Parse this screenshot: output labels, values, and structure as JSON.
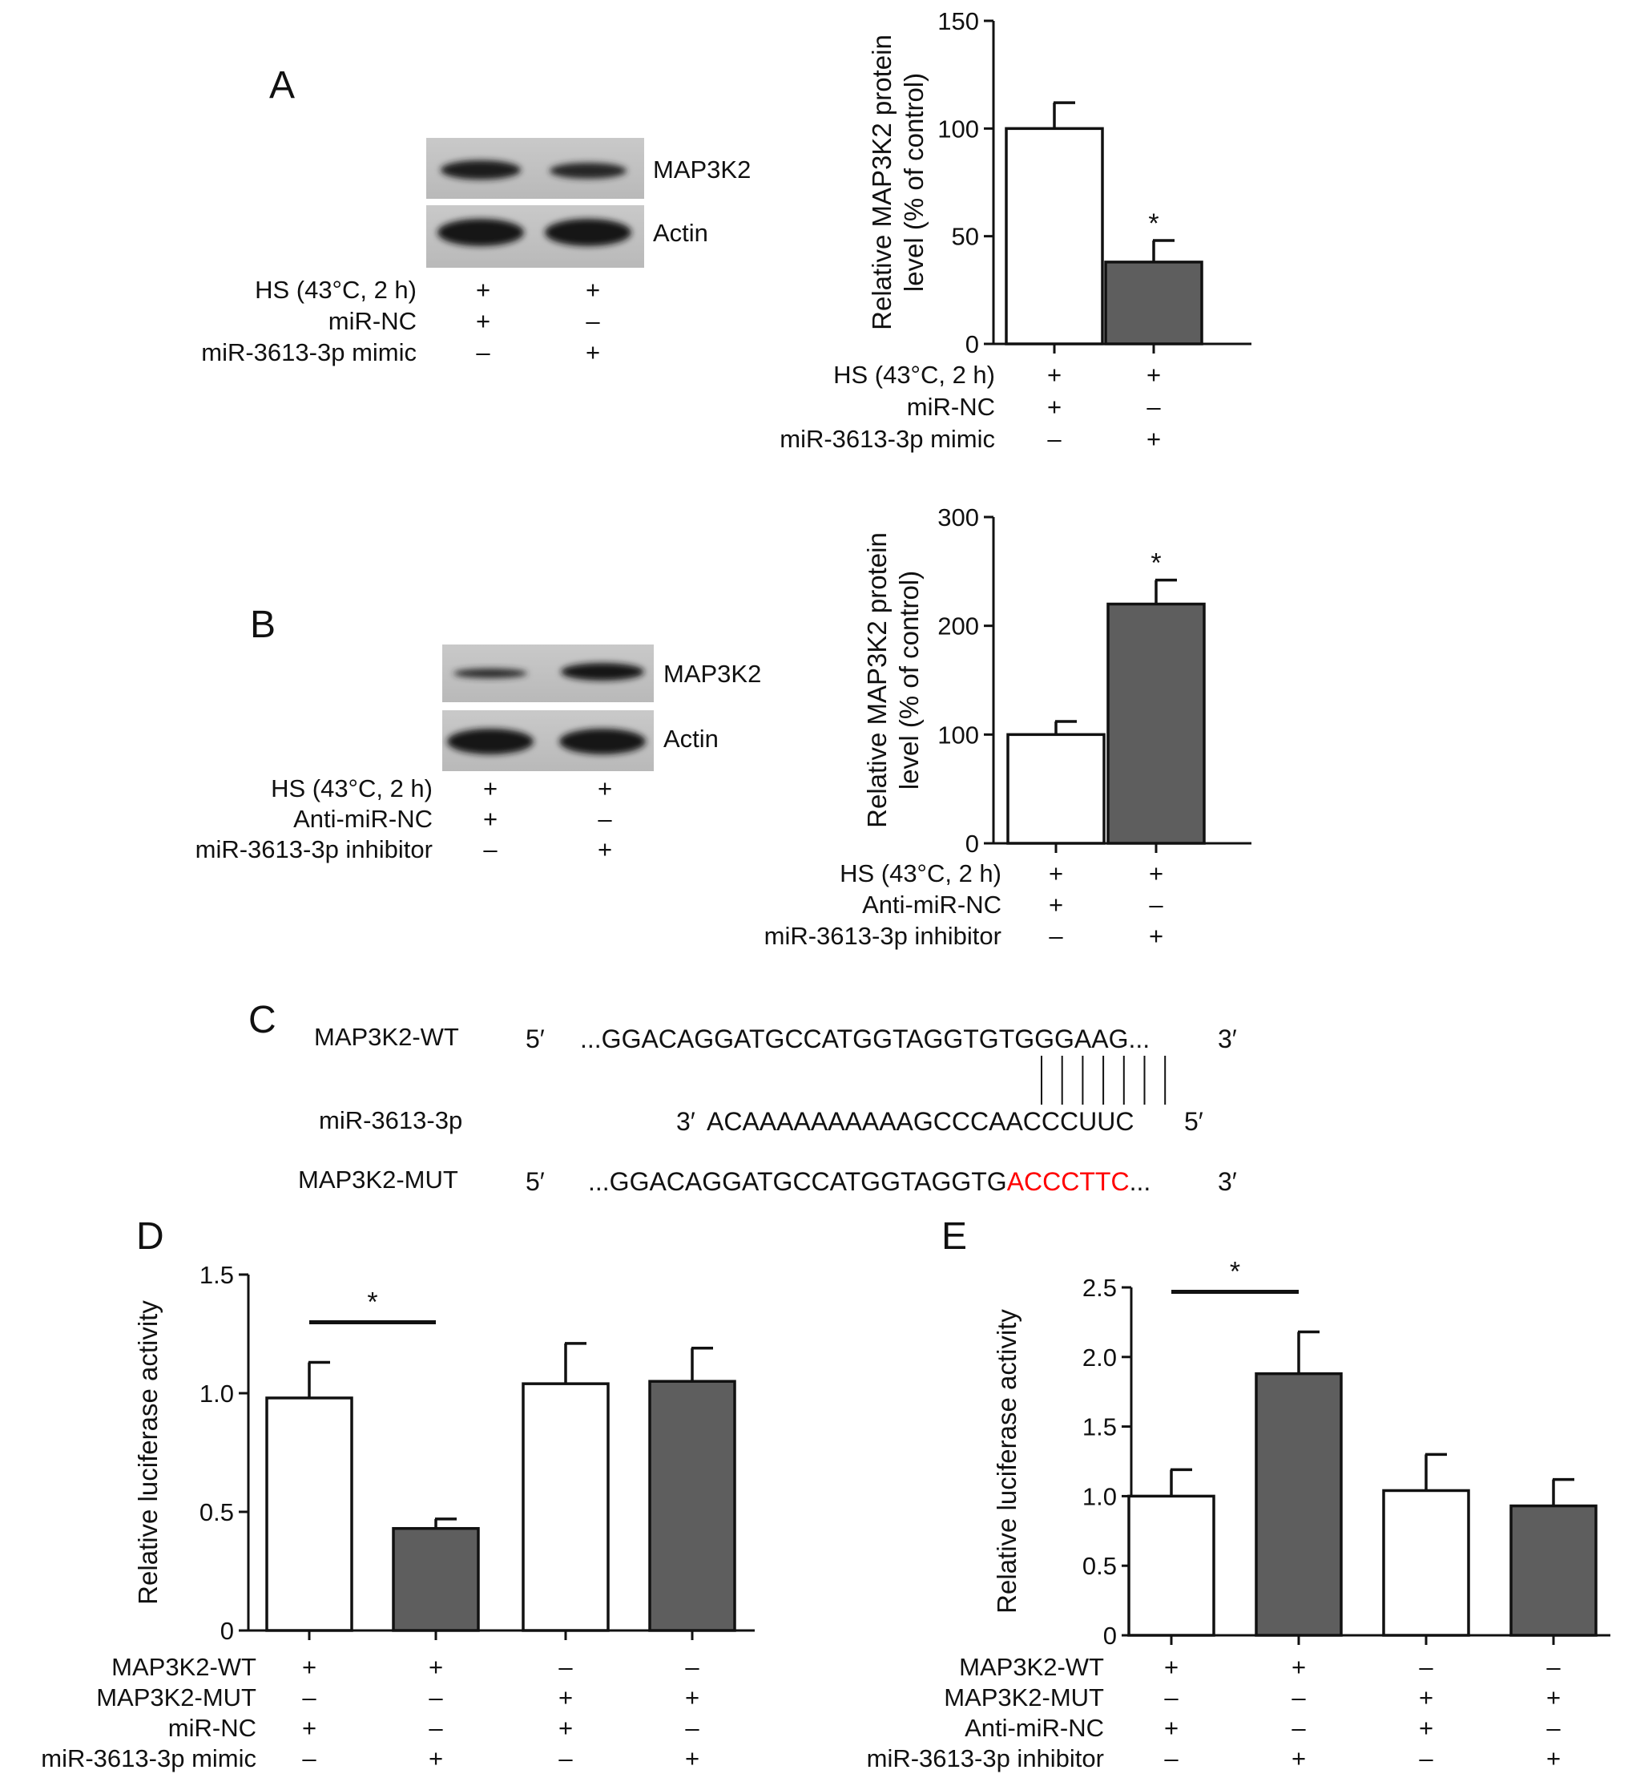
{
  "colors": {
    "open_bar": "#ffffff",
    "filled_bar": "#5e5e5e",
    "mutation_text": "#ff0000",
    "ink": "#111111"
  },
  "blot_A": {
    "letter": "A",
    "bands": [
      "MAP3K2",
      "Actin"
    ],
    "conditions": [
      {
        "label": "HS (43°C, 2 h)",
        "signs": [
          "+",
          "+"
        ]
      },
      {
        "label": "miR-NC",
        "signs": [
          "+",
          "–"
        ]
      },
      {
        "label": "miR-3613-3p mimic",
        "signs": [
          "–",
          "+"
        ]
      }
    ]
  },
  "blot_B": {
    "letter": "B",
    "bands": [
      "MAP3K2",
      "Actin"
    ],
    "conditions": [
      {
        "label": "HS (43°C, 2 h)",
        "signs": [
          "+",
          "+"
        ]
      },
      {
        "label": "Anti-miR-NC",
        "signs": [
          "+",
          "–"
        ]
      },
      {
        "label": "miR-3613-3p inhibitor",
        "signs": [
          "–",
          "+"
        ]
      }
    ]
  },
  "panel_C": {
    "letter": "C",
    "rows": [
      {
        "name": "MAP3K2-WT",
        "prime5": "5′",
        "seq": "...GGACAGGATGCCATGGTAGGTGTGGGAAG...",
        "prime3": "3′"
      },
      {
        "name": "miR-3613-3p",
        "prime3": "3′",
        "seq": "ACAAAAAAAAAAGCCCAACCCUUC",
        "prime5": "5′"
      },
      {
        "name": "MAP3K2-MUT",
        "prime5": "5′",
        "seq_black": "...GGACAGGATGCCATGGTAGGTG",
        "seq_red": "ACCCTTC",
        "seq_tail": "...",
        "prime3": "3′"
      }
    ],
    "pairing_lines": 7
  },
  "panel_D_letter": "D",
  "panel_E_letter": "E",
  "chart_data": [
    {
      "type": "bar",
      "panel": "A",
      "ylabel_lines": [
        "Relative MAP3K2 protein",
        "level (% of control)"
      ],
      "ylim": [
        0,
        150
      ],
      "yticks": [
        "0",
        "50",
        "100",
        "150"
      ],
      "values": [
        100,
        38
      ],
      "errors": [
        12,
        10
      ],
      "fills": [
        "open",
        "filled"
      ],
      "significance": [
        "",
        "*"
      ],
      "conditions": [
        {
          "label": "HS (43°C, 2 h)",
          "signs": [
            "+",
            "+"
          ]
        },
        {
          "label": "miR-NC",
          "signs": [
            "+",
            "–"
          ]
        },
        {
          "label": "miR-3613-3p mimic",
          "signs": [
            "–",
            "+"
          ]
        }
      ]
    },
    {
      "type": "bar",
      "panel": "B",
      "ylabel_lines": [
        "Relative MAP3K2 protein",
        "level (% of control)"
      ],
      "ylim": [
        0,
        300
      ],
      "yticks": [
        "0",
        "100",
        "200",
        "300"
      ],
      "values": [
        100,
        220
      ],
      "errors": [
        12,
        22
      ],
      "fills": [
        "open",
        "filled"
      ],
      "significance": [
        "",
        "*"
      ],
      "conditions": [
        {
          "label": "HS (43°C, 2 h)",
          "signs": [
            "+",
            "+"
          ]
        },
        {
          "label": "Anti-miR-NC",
          "signs": [
            "+",
            "–"
          ]
        },
        {
          "label": "miR-3613-3p inhibitor",
          "signs": [
            "–",
            "+"
          ]
        }
      ]
    },
    {
      "type": "bar",
      "panel": "D",
      "ylabel_lines": [
        "Relative luciferase activity"
      ],
      "ylim": [
        0,
        1.5
      ],
      "yticks": [
        "0",
        "0.5",
        "1.0",
        "1.5"
      ],
      "values": [
        0.98,
        0.43,
        1.04,
        1.05
      ],
      "errors": [
        0.15,
        0.04,
        0.17,
        0.14
      ],
      "fills": [
        "open",
        "filled",
        "open",
        "filled"
      ],
      "significance_bracket": {
        "from": 0,
        "to": 1,
        "label": "*"
      },
      "conditions": [
        {
          "label": "MAP3K2-WT",
          "signs": [
            "+",
            "+",
            "–",
            "–"
          ]
        },
        {
          "label": "MAP3K2-MUT",
          "signs": [
            "–",
            "–",
            "+",
            "+"
          ]
        },
        {
          "label": "miR-NC",
          "signs": [
            "+",
            "–",
            "+",
            "–"
          ]
        },
        {
          "label": "miR-3613-3p mimic",
          "signs": [
            "–",
            "+",
            "–",
            "+"
          ]
        }
      ]
    },
    {
      "type": "bar",
      "panel": "E",
      "ylabel_lines": [
        "Relative luciferase activity"
      ],
      "ylim": [
        0,
        2.5
      ],
      "yticks": [
        "0",
        "0.5",
        "1.0",
        "1.5",
        "2.0",
        "2.5"
      ],
      "values": [
        1.0,
        1.88,
        1.04,
        0.93
      ],
      "errors": [
        0.19,
        0.3,
        0.26,
        0.19
      ],
      "fills": [
        "open",
        "filled",
        "open",
        "filled"
      ],
      "significance_bracket": {
        "from": 0,
        "to": 1,
        "label": "*"
      },
      "conditions": [
        {
          "label": "MAP3K2-WT",
          "signs": [
            "+",
            "+",
            "–",
            "–"
          ]
        },
        {
          "label": "MAP3K2-MUT",
          "signs": [
            "–",
            "–",
            "+",
            "+"
          ]
        },
        {
          "label": "Anti-miR-NC",
          "signs": [
            "+",
            "–",
            "+",
            "–"
          ]
        },
        {
          "label": "miR-3613-3p inhibitor",
          "signs": [
            "–",
            "+",
            "–",
            "+"
          ]
        }
      ]
    }
  ]
}
